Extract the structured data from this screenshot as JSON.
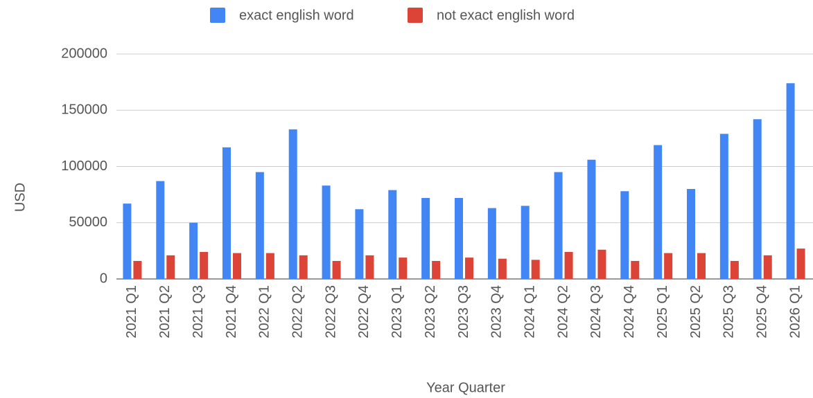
{
  "chart_data": {
    "type": "bar",
    "x_label": "Year Quarter",
    "y_label": "USD",
    "categories": [
      "2021 Q1",
      "2021 Q2",
      "2021 Q3",
      "2021 Q4",
      "2022 Q1",
      "2022 Q2",
      "2022 Q3",
      "2022 Q4",
      "2023 Q1",
      "2023 Q2",
      "2023 Q3",
      "2023 Q4",
      "2024 Q1",
      "2024 Q2",
      "2024 Q3",
      "2024 Q4",
      "2025 Q1",
      "2025 Q2",
      "2025 Q3",
      "2025 Q4",
      "2026 Q1"
    ],
    "series": [
      {
        "name": "exact english word",
        "color": "#4285f4",
        "values": [
          67000,
          87000,
          50000,
          117000,
          95000,
          133000,
          83000,
          62000,
          79000,
          72000,
          72000,
          63000,
          65000,
          95000,
          106000,
          78000,
          119000,
          80000,
          129000,
          142000,
          174000
        ]
      },
      {
        "name": "not exact english word",
        "color": "#db4437",
        "values": [
          16000,
          21000,
          24000,
          23000,
          23000,
          21000,
          16000,
          21000,
          19000,
          16000,
          19000,
          18000,
          17000,
          24000,
          26000,
          16000,
          23000,
          23000,
          16000,
          21000,
          27000
        ]
      }
    ],
    "ylim": [
      0,
      200000
    ],
    "yticks": [
      0,
      50000,
      100000,
      150000,
      200000
    ],
    "grid": true,
    "legend_position": "top"
  }
}
